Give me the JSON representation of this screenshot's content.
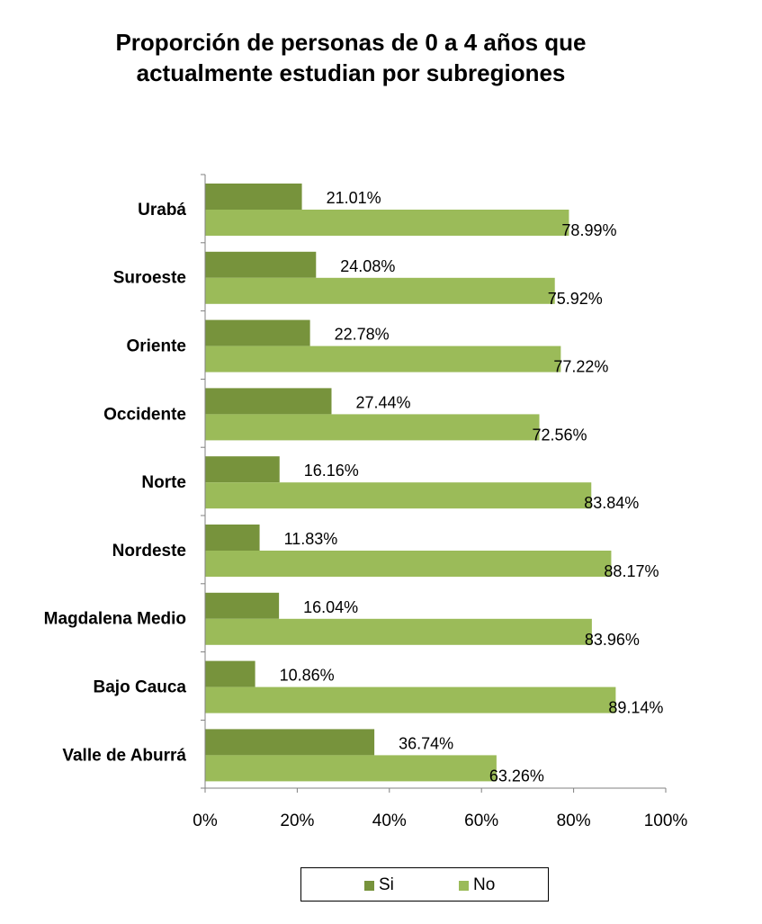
{
  "chart_data": {
    "type": "bar",
    "orientation": "horizontal",
    "title": [
      "Proporción de personas de 0 a 4 años que",
      "actualmente estudian por subregiones"
    ],
    "categories": [
      "Urabá",
      "Suroeste",
      "Oriente",
      "Occidente",
      "Norte",
      "Nordeste",
      "Magdalena Medio",
      "Bajo Cauca",
      "Valle de Aburrá"
    ],
    "series": [
      {
        "name": "Si",
        "color": "#77933c",
        "values": [
          21.01,
          24.08,
          22.78,
          27.44,
          16.16,
          11.83,
          16.04,
          10.86,
          36.74
        ],
        "labels": [
          "21.01%",
          "24.08%",
          "22.78%",
          "27.44%",
          "16.16%",
          "11.83%",
          "16.04%",
          "10.86%",
          "36.74%"
        ]
      },
      {
        "name": "No",
        "color": "#9bbb59",
        "values": [
          78.99,
          75.92,
          77.22,
          72.56,
          83.84,
          88.17,
          83.96,
          89.14,
          63.26
        ],
        "labels": [
          "78.99%",
          "75.92%",
          "77.22%",
          "72.56%",
          "83.84%",
          "88.17%",
          "83.96%",
          "89.14%",
          "63.26%"
        ]
      }
    ],
    "x_ticks": [
      "0%",
      "20%",
      "40%",
      "60%",
      "80%",
      "100%"
    ],
    "xlim": [
      0,
      100
    ],
    "grid": false,
    "legend_position": "bottom"
  }
}
